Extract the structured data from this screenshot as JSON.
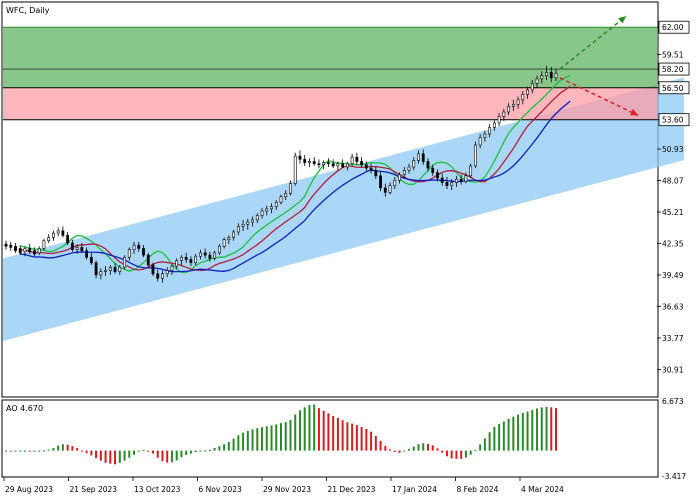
{
  "chart_data": [
    {
      "type": "candlestick",
      "title": "WFC, Daily",
      "symbol": "WFC",
      "timeframe": "Daily",
      "price_axis_labels": [
        "62.00",
        "59.51",
        "58.20",
        "56.50",
        "53.60",
        "50.93",
        "48.07",
        "45.21",
        "42.35",
        "39.49",
        "36.63",
        "33.77",
        "30.91"
      ],
      "ylim": [
        28.5,
        64.2
      ],
      "x_date_labels": [
        "29 Aug 2023",
        "21 Sep 2023",
        "13 Oct 2023",
        "6 Nov 2023",
        "29 Nov 2023",
        "21 Dec 2023",
        "17 Jan 2024",
        "8 Feb 2024",
        "4 Mar 2024"
      ],
      "levels": [
        {
          "name": "target-high",
          "value": 62.0,
          "color": "#2e8b2e"
        },
        {
          "name": "current-price",
          "value": 58.2,
          "color": "#000000"
        },
        {
          "name": "resistance",
          "value": 56.5,
          "color": "#000000"
        },
        {
          "name": "support",
          "value": 53.6,
          "color": "#000000"
        }
      ],
      "zones": [
        {
          "name": "buy-zone",
          "from": 56.5,
          "to": 62.0,
          "color": "#5cb05c"
        },
        {
          "name": "sell-zone",
          "from": 53.6,
          "to": 56.5,
          "color": "#ff9aa2"
        }
      ],
      "channel": {
        "color": "#8ec9f5",
        "lower_start": 33.5,
        "upper_start": 41.0,
        "slope_per_bar": 0.123,
        "bars": 168
      },
      "ma_colors": {
        "fast": "#19c040",
        "medium": "#b02040",
        "slow": "#1020c0"
      },
      "candles": [
        [
          42.3,
          42.6,
          41.8,
          42.1
        ],
        [
          42.2,
          42.5,
          41.7,
          42.0
        ],
        [
          42.1,
          42.4,
          41.5,
          41.7
        ],
        [
          41.9,
          42.2,
          41.3,
          41.5
        ],
        [
          41.6,
          42.1,
          41.2,
          41.9
        ],
        [
          41.9,
          42.3,
          41.4,
          41.6
        ],
        [
          41.7,
          42.0,
          41.2,
          41.4
        ],
        [
          41.5,
          42.1,
          41.3,
          41.9
        ],
        [
          41.9,
          42.8,
          41.7,
          42.6
        ],
        [
          42.6,
          43.2,
          42.4,
          42.9
        ],
        [
          42.9,
          43.5,
          42.6,
          43.3
        ],
        [
          43.3,
          43.8,
          43.0,
          43.5
        ],
        [
          43.5,
          43.9,
          42.9,
          43.1
        ],
        [
          43.1,
          43.4,
          42.2,
          42.4
        ],
        [
          42.4,
          42.7,
          41.6,
          41.8
        ],
        [
          41.8,
          42.3,
          41.4,
          42.0
        ],
        [
          42.0,
          42.4,
          41.5,
          41.7
        ],
        [
          41.7,
          42.0,
          40.9,
          41.1
        ],
        [
          41.1,
          41.5,
          40.4,
          40.6
        ],
        [
          40.6,
          40.8,
          39.2,
          39.5
        ],
        [
          39.5,
          40.1,
          39.1,
          39.8
        ],
        [
          39.8,
          40.3,
          39.4,
          39.9
        ],
        [
          39.9,
          40.4,
          39.5,
          40.2
        ],
        [
          40.2,
          40.6,
          39.6,
          39.8
        ],
        [
          39.8,
          40.4,
          39.5,
          40.2
        ],
        [
          40.2,
          41.3,
          40.0,
          41.1
        ],
        [
          41.1,
          42.0,
          40.8,
          41.8
        ],
        [
          41.8,
          42.5,
          41.4,
          42.2
        ],
        [
          42.2,
          42.5,
          41.6,
          41.9
        ],
        [
          41.9,
          42.2,
          41.1,
          41.3
        ],
        [
          41.3,
          41.5,
          40.2,
          40.4
        ],
        [
          40.4,
          40.6,
          39.4,
          39.6
        ],
        [
          39.6,
          40.0,
          38.9,
          39.2
        ],
        [
          39.2,
          39.9,
          38.8,
          39.6
        ],
        [
          39.6,
          40.2,
          39.3,
          39.9
        ],
        [
          39.9,
          40.5,
          39.5,
          40.3
        ],
        [
          40.3,
          41.0,
          40.0,
          40.8
        ],
        [
          40.8,
          41.3,
          40.4,
          41.1
        ],
        [
          41.1,
          41.5,
          40.6,
          40.9
        ],
        [
          40.9,
          41.2,
          40.3,
          40.6
        ],
        [
          40.6,
          41.4,
          40.4,
          41.2
        ],
        [
          41.2,
          41.8,
          40.9,
          41.5
        ],
        [
          41.5,
          41.9,
          41.0,
          41.3
        ],
        [
          41.3,
          41.6,
          40.7,
          41.0
        ],
        [
          41.0,
          41.7,
          40.8,
          41.5
        ],
        [
          41.5,
          42.3,
          41.3,
          42.1
        ],
        [
          42.1,
          42.9,
          41.9,
          42.7
        ],
        [
          42.7,
          43.1,
          42.3,
          42.9
        ],
        [
          42.9,
          43.6,
          42.6,
          43.4
        ],
        [
          43.4,
          44.2,
          43.1,
          43.9
        ],
        [
          43.9,
          44.5,
          43.5,
          44.1
        ],
        [
          44.1,
          44.6,
          43.6,
          44.3
        ],
        [
          44.3,
          44.8,
          43.9,
          44.5
        ],
        [
          44.5,
          45.1,
          44.2,
          44.9
        ],
        [
          44.9,
          45.6,
          44.6,
          45.3
        ],
        [
          45.3,
          45.8,
          44.9,
          45.5
        ],
        [
          45.5,
          46.0,
          45.1,
          45.7
        ],
        [
          45.7,
          46.3,
          45.4,
          46.1
        ],
        [
          46.1,
          46.8,
          45.9,
          46.6
        ],
        [
          46.6,
          47.2,
          46.3,
          46.9
        ],
        [
          46.9,
          48.1,
          46.7,
          47.8
        ],
        [
          47.8,
          50.6,
          47.6,
          50.3
        ],
        [
          50.3,
          50.8,
          49.6,
          50.0
        ],
        [
          50.0,
          50.4,
          49.4,
          49.7
        ],
        [
          49.7,
          50.1,
          49.3,
          49.8
        ],
        [
          49.8,
          50.2,
          49.4,
          49.6
        ],
        [
          49.6,
          50.0,
          49.2,
          49.5
        ],
        [
          49.5,
          49.9,
          49.1,
          49.7
        ],
        [
          49.7,
          50.1,
          49.3,
          49.6
        ],
        [
          49.6,
          50.0,
          49.2,
          49.4
        ],
        [
          49.4,
          49.8,
          49.0,
          49.6
        ],
        [
          49.6,
          50.0,
          49.2,
          49.3
        ],
        [
          49.3,
          49.8,
          49.0,
          49.6
        ],
        [
          49.6,
          50.5,
          49.4,
          50.2
        ],
        [
          50.2,
          50.6,
          49.5,
          49.8
        ],
        [
          49.8,
          50.2,
          49.3,
          49.5
        ],
        [
          49.5,
          49.8,
          48.9,
          49.2
        ],
        [
          49.2,
          49.6,
          48.7,
          49.0
        ],
        [
          49.0,
          49.4,
          48.2,
          48.5
        ],
        [
          48.5,
          48.9,
          47.1,
          47.4
        ],
        [
          47.4,
          47.8,
          46.6,
          47.0
        ],
        [
          47.0,
          47.9,
          46.8,
          47.6
        ],
        [
          47.6,
          48.4,
          47.3,
          48.1
        ],
        [
          48.1,
          48.8,
          47.8,
          48.6
        ],
        [
          48.6,
          49.3,
          48.3,
          49.0
        ],
        [
          49.0,
          49.6,
          48.7,
          49.3
        ],
        [
          49.3,
          50.2,
          49.0,
          49.9
        ],
        [
          49.9,
          50.8,
          49.6,
          50.5
        ],
        [
          50.5,
          50.9,
          49.5,
          49.8
        ],
        [
          49.8,
          50.1,
          48.9,
          49.2
        ],
        [
          49.2,
          49.5,
          48.5,
          48.8
        ],
        [
          48.8,
          49.1,
          48.0,
          48.3
        ],
        [
          48.3,
          48.7,
          47.6,
          47.9
        ],
        [
          47.9,
          48.4,
          47.3,
          47.6
        ],
        [
          47.6,
          48.2,
          47.2,
          47.9
        ],
        [
          47.9,
          48.5,
          47.5,
          48.2
        ],
        [
          48.2,
          48.6,
          47.7,
          48.0
        ],
        [
          48.0,
          48.8,
          47.8,
          48.5
        ],
        [
          48.5,
          49.6,
          48.3,
          49.4
        ],
        [
          49.4,
          51.6,
          49.2,
          51.3
        ],
        [
          51.3,
          52.3,
          51.0,
          52.0
        ],
        [
          52.0,
          52.6,
          51.6,
          52.3
        ],
        [
          52.3,
          53.2,
          52.0,
          52.9
        ],
        [
          52.9,
          53.6,
          52.6,
          53.3
        ],
        [
          53.3,
          54.2,
          53.0,
          53.9
        ],
        [
          53.9,
          54.6,
          53.5,
          54.3
        ],
        [
          54.3,
          55.1,
          54.0,
          54.8
        ],
        [
          54.8,
          55.4,
          54.4,
          55.0
        ],
        [
          55.0,
          55.7,
          54.6,
          55.4
        ],
        [
          55.4,
          56.2,
          55.0,
          55.9
        ],
        [
          55.9,
          56.6,
          55.5,
          56.3
        ],
        [
          56.3,
          57.2,
          56.0,
          56.9
        ],
        [
          56.9,
          57.6,
          56.5,
          57.3
        ],
        [
          57.3,
          58.0,
          56.9,
          57.6
        ],
        [
          57.6,
          58.5,
          57.2,
          57.9
        ],
        [
          57.9,
          58.4,
          57.0,
          57.4
        ],
        [
          57.4,
          58.2,
          57.1,
          57.8
        ]
      ],
      "ao": {
        "label": "AO 4.670",
        "value": 4.67,
        "scale_labels": [
          "6.673",
          "-3.417"
        ],
        "ylim": [
          -3.417,
          6.673
        ],
        "up_color": "#2a8a2a",
        "down_color": "#d02020"
      }
    }
  ]
}
